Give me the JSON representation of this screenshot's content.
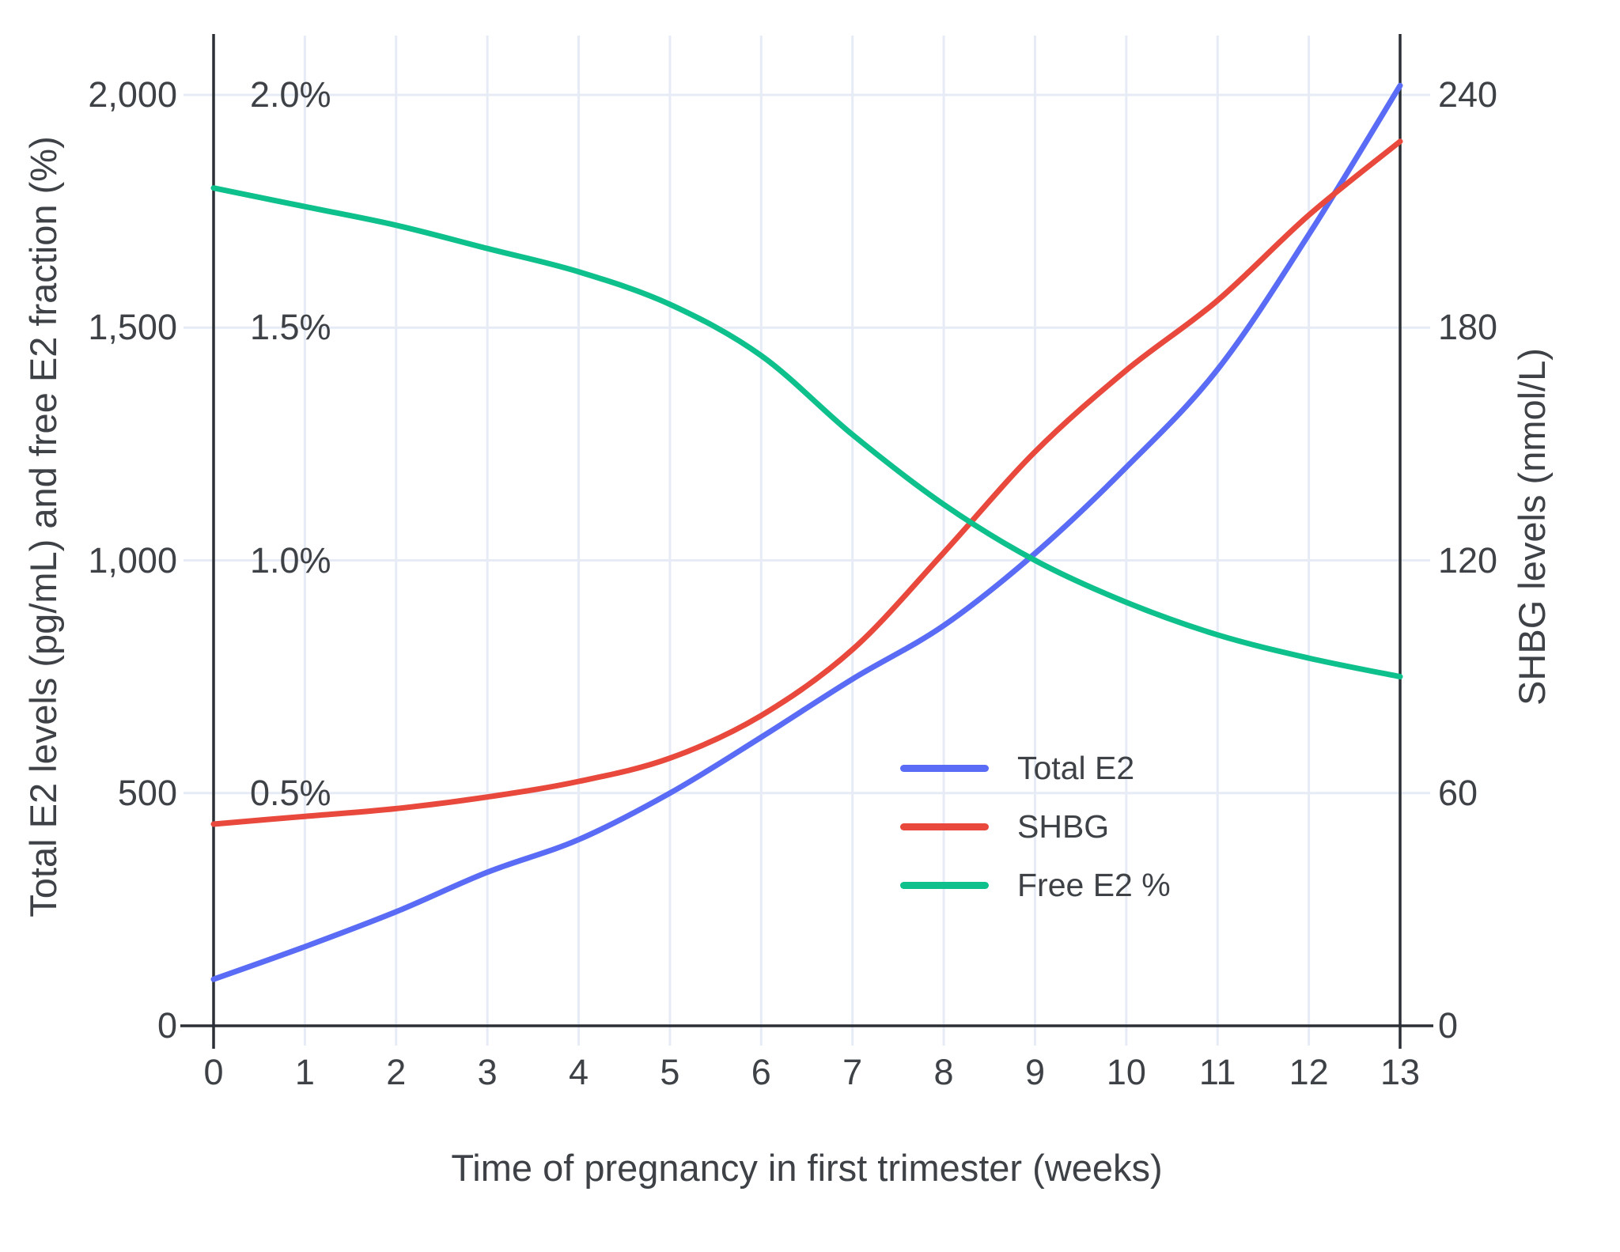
{
  "chart_data": {
    "type": "line",
    "title": "",
    "xlabel": "Time of pregnancy in first trimester (weeks)",
    "ylabel_left": "Total E2 levels (pg/mL) and free E2 fraction (%)",
    "ylabel_right": "SHBG levels (nmol/L)",
    "x": [
      0,
      1,
      2,
      3,
      4,
      5,
      6,
      7,
      8,
      9,
      10,
      11,
      12,
      13
    ],
    "xlim": [
      0,
      13
    ],
    "ylim_left": [
      0,
      2000
    ],
    "ylim_left_percent": [
      0,
      2.0
    ],
    "ylim_right": [
      0,
      240
    ],
    "grid": true,
    "legend_position": "inside-right-middle",
    "series": [
      {
        "name": "Total E2",
        "yaxis": "left",
        "unit": "pg/mL",
        "color": "#5A6CF5",
        "values": [
          100,
          170,
          245,
          330,
          400,
          500,
          620,
          745,
          860,
          1015,
          1200,
          1410,
          1700,
          2020
        ]
      },
      {
        "name": "SHBG",
        "yaxis": "right",
        "unit": "nmol/L",
        "color": "#E9493C",
        "values": [
          52,
          54,
          56,
          59,
          63,
          69,
          80,
          97,
          122,
          148,
          169,
          187,
          209,
          228
        ]
      },
      {
        "name": "Free E2 %",
        "yaxis": "left-percent",
        "unit": "%",
        "color": "#0EC08C",
        "values": [
          1.8,
          1.76,
          1.72,
          1.67,
          1.62,
          1.55,
          1.44,
          1.27,
          1.12,
          1.0,
          0.91,
          0.84,
          0.79,
          0.75
        ]
      }
    ]
  },
  "axes": {
    "left_ticks": [
      "0",
      "500",
      "1,000",
      "1,500",
      "2,000"
    ],
    "left_tick_values": [
      0,
      500,
      1000,
      1500,
      2000
    ],
    "percent_labels": [
      "0.5%",
      "1.0%",
      "1.5%",
      "2.0%"
    ],
    "percent_values": [
      0.5,
      1.0,
      1.5,
      2.0
    ],
    "right_ticks": [
      "0",
      "60",
      "120",
      "180",
      "240"
    ],
    "right_tick_values": [
      0,
      60,
      120,
      180,
      240
    ],
    "x_ticks": [
      "0",
      "1",
      "2",
      "3",
      "4",
      "5",
      "6",
      "7",
      "8",
      "9",
      "10",
      "11",
      "12",
      "13"
    ]
  },
  "style": {
    "accent_blue": "#5A6CF5",
    "accent_red": "#E9493C",
    "accent_green": "#0EC08C",
    "grid_color": "#E6EBF6",
    "axis_color": "#2B2F36",
    "text_color": "#3E4247",
    "background": "#FFFFFF"
  }
}
